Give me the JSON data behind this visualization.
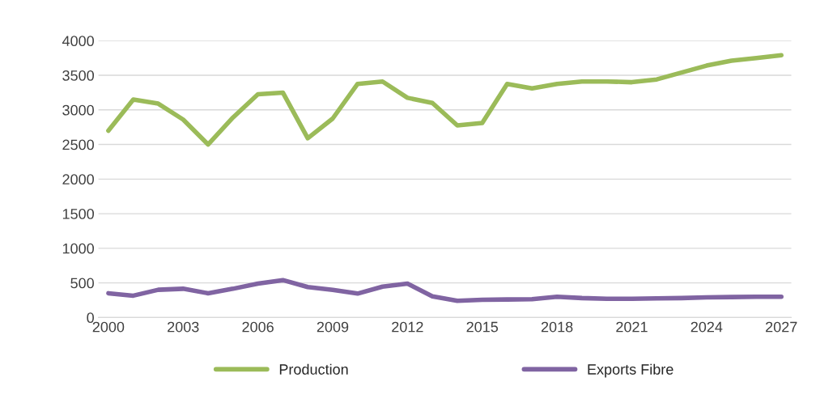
{
  "chart_data": {
    "type": "line",
    "x": [
      2000,
      2001,
      2002,
      2003,
      2004,
      2005,
      2006,
      2007,
      2008,
      2009,
      2010,
      2011,
      2012,
      2013,
      2014,
      2015,
      2016,
      2017,
      2018,
      2019,
      2020,
      2021,
      2022,
      2023,
      2024,
      2025,
      2026,
      2027
    ],
    "series": [
      {
        "name": "Production",
        "color": "#9bbb59",
        "values": [
          2700,
          3150,
          3090,
          2860,
          2500,
          2890,
          3225,
          3250,
          2590,
          2875,
          3375,
          3410,
          3175,
          3100,
          2775,
          2810,
          3375,
          3310,
          3375,
          3410,
          3410,
          3400,
          3440,
          3540,
          3640,
          3710,
          3750,
          3790
        ]
      },
      {
        "name": "Exports Fibre",
        "color": "#8064a2",
        "values": [
          350,
          315,
          400,
          415,
          350,
          415,
          490,
          540,
          440,
          400,
          345,
          445,
          490,
          305,
          240,
          255,
          260,
          265,
          300,
          280,
          270,
          270,
          275,
          280,
          290,
          295,
          300,
          300
        ]
      }
    ],
    "xlim": [
      1999.6,
      2027.4
    ],
    "xticks": [
      2000,
      2003,
      2006,
      2009,
      2012,
      2015,
      2018,
      2021,
      2024,
      2027
    ],
    "ylim": [
      0,
      4000
    ],
    "yticks": [
      0,
      500,
      1000,
      1500,
      2000,
      2500,
      3000,
      3500,
      4000
    ],
    "grid": "y",
    "legend": "bottom",
    "marker": "none",
    "line_style": "solid"
  }
}
